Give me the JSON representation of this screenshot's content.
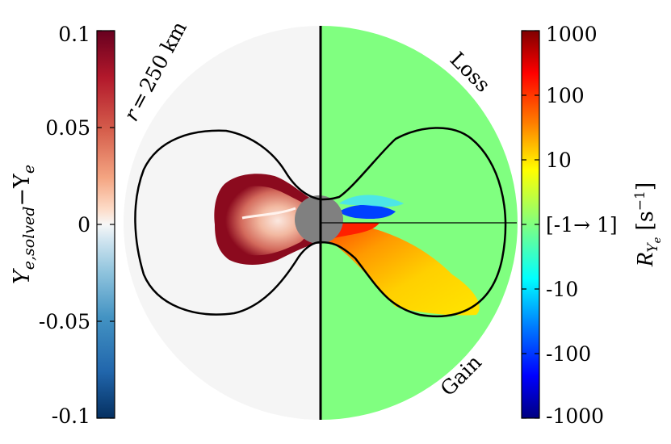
{
  "chart_data": {
    "type": "heatmap",
    "panels": [
      {
        "side": "left",
        "quantity": "Y_e,solved - Y_e",
        "colormap": "RdBu_r",
        "colorbar": {
          "label": "Y_e,solved − Y_e",
          "label_main": "Y",
          "label_sub": "e,solved",
          "label_tail": "−Y",
          "label_tail_sub": "e",
          "ticks": [
            "0.1",
            "0.05",
            "0",
            "-0.05",
            "-0.1"
          ],
          "range": [
            -0.1,
            0.1
          ]
        },
        "annotation": "r = 250 km",
        "annotation_parts": {
          "var": "r",
          "eq": "=",
          "value": "250 km"
        }
      },
      {
        "side": "right",
        "quantity": "R_Ye",
        "colormap": "jet",
        "scale": "symlog",
        "linthresh": 1,
        "colorbar": {
          "label": "R_Ye [s^-1]",
          "label_main": "R",
          "label_sub": "Y",
          "label_subsub": "e",
          "label_unit_open": "[s",
          "label_unit_exp": "−1",
          "label_unit_close": "]",
          "ticks": [
            "1000",
            "100",
            "10",
            "[-1→ 1]",
            "-10",
            "-100",
            "-1000"
          ],
          "range": [
            -1000,
            1000
          ]
        },
        "annotations": [
          "Loss",
          "Gain"
        ]
      }
    ],
    "colors": {
      "background_disk": "#f5f5f5",
      "right_background": "#80ff80",
      "core": "#808080",
      "max_red": "#670010",
      "contour": "#000000"
    }
  }
}
